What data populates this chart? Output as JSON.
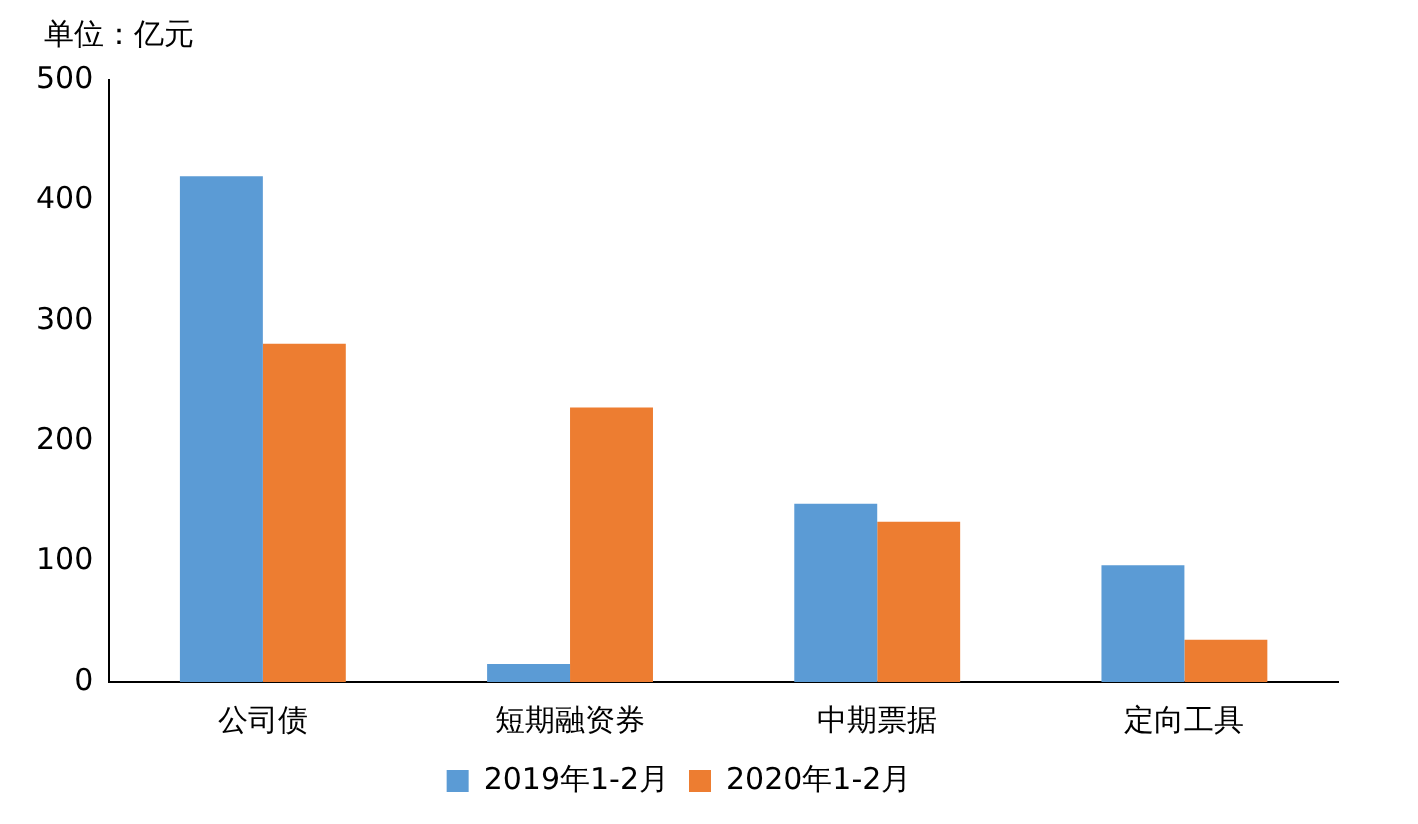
{
  "chart_data": {
    "type": "bar",
    "ylabel": "单位：亿元",
    "categories": [
      "公司债",
      "短期融资券",
      "中期票据",
      "定向工具"
    ],
    "series": [
      {
        "name": "2019年1-2月",
        "color": "#5b9bd5",
        "values": [
          420,
          15,
          148,
          97
        ]
      },
      {
        "name": "2020年1-2月",
        "color": "#ed7d31",
        "values": [
          281,
          228,
          133,
          35
        ]
      }
    ],
    "ylim": [
      0,
      500
    ],
    "yticks": [
      0,
      100,
      200,
      300,
      400,
      500
    ],
    "grid": false,
    "legend": "bottom"
  }
}
